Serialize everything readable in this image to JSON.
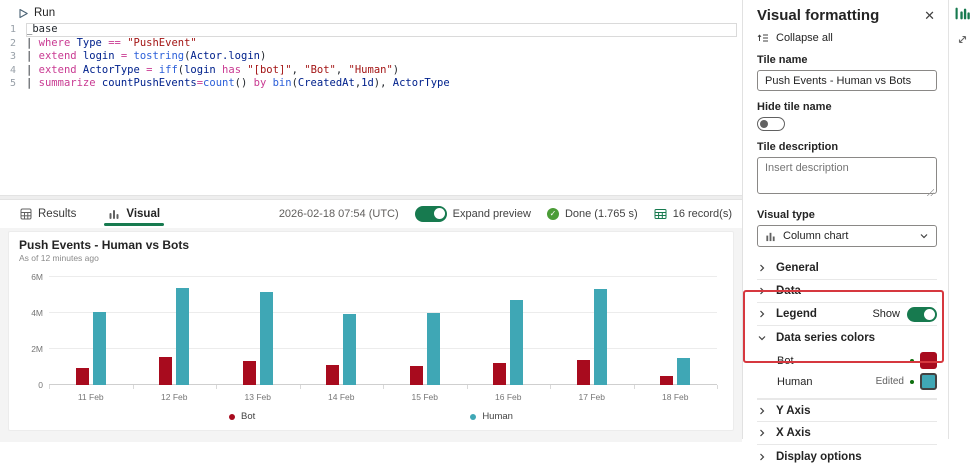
{
  "colors": {
    "accent_green": "#177a4f",
    "bot_red": "#a80b1e",
    "human_teal": "#3fa7b5",
    "annotation_red": "#d6383f",
    "done_green": "#4b9c37"
  },
  "icons": {
    "run": "play-outline-icon",
    "results_tab": "table-grid-icon",
    "visual_tab": "column-chart-icon",
    "records": "table-grid-icon",
    "done": "check-circle-icon",
    "close": "close-icon",
    "collapse_all": "collapse-all-icon",
    "dropdown_visual_type": "column-chart-icon",
    "chevron_right": "chevron-right-icon",
    "chevron_down": "chevron-down-icon",
    "rail_chart": "column-chart-icon",
    "rail_expand": "diagonal-resize-icon"
  },
  "editor": {
    "run_label": "Run",
    "lines": [
      {
        "num": "1",
        "current": true,
        "tokens": [
          [
            "p",
            "_base"
          ]
        ]
      },
      {
        "num": "2",
        "current": false,
        "tokens": [
          [
            "p",
            "| "
          ],
          [
            "k",
            "where"
          ],
          [
            "p",
            " "
          ],
          [
            "c",
            "Type"
          ],
          [
            "p",
            " "
          ],
          [
            "k",
            "=="
          ],
          [
            "p",
            " "
          ],
          [
            "s",
            "\"PushEvent\""
          ]
        ]
      },
      {
        "num": "3",
        "current": false,
        "tokens": [
          [
            "p",
            "| "
          ],
          [
            "k",
            "extend"
          ],
          [
            "p",
            " "
          ],
          [
            "c",
            "login"
          ],
          [
            "p",
            " "
          ],
          [
            "k",
            "="
          ],
          [
            "p",
            " "
          ],
          [
            "f",
            "tostring"
          ],
          [
            "p",
            "("
          ],
          [
            "c",
            "Actor.login"
          ],
          [
            "p",
            ")"
          ]
        ]
      },
      {
        "num": "4",
        "current": false,
        "tokens": [
          [
            "p",
            "| "
          ],
          [
            "k",
            "extend"
          ],
          [
            "p",
            " "
          ],
          [
            "c",
            "ActorType"
          ],
          [
            "p",
            " "
          ],
          [
            "k",
            "="
          ],
          [
            "p",
            " "
          ],
          [
            "f",
            "iff"
          ],
          [
            "p",
            "("
          ],
          [
            "c",
            "login"
          ],
          [
            "p",
            " "
          ],
          [
            "k",
            "has"
          ],
          [
            "p",
            " "
          ],
          [
            "s",
            "\"[bot]\""
          ],
          [
            "p",
            ", "
          ],
          [
            "s",
            "\"Bot\""
          ],
          [
            "p",
            ", "
          ],
          [
            "s",
            "\"Human\""
          ],
          [
            "p",
            ")"
          ]
        ]
      },
      {
        "num": "5",
        "current": false,
        "tokens": [
          [
            "p",
            "| "
          ],
          [
            "k",
            "summarize"
          ],
          [
            "p",
            " "
          ],
          [
            "c",
            "countPushEvents"
          ],
          [
            "k",
            "="
          ],
          [
            "f",
            "count"
          ],
          [
            "p",
            "() "
          ],
          [
            "k",
            "by"
          ],
          [
            "p",
            " "
          ],
          [
            "f",
            "bin"
          ],
          [
            "p",
            "("
          ],
          [
            "c",
            "CreatedAt"
          ],
          [
            "p",
            ","
          ],
          [
            "c",
            "1d"
          ],
          [
            "p",
            "), "
          ],
          [
            "c",
            "ActorType"
          ]
        ]
      }
    ]
  },
  "tabs": {
    "results": "Results",
    "visual": "Visual"
  },
  "status": {
    "timestamp": "2026-02-18 07:54 (UTC)",
    "expand_preview_label": "Expand preview",
    "done_label": "Done (1.765 s)",
    "records_label": "16 record(s)"
  },
  "chart": {
    "title": "Push Events - Human vs Bots",
    "subtitle": "As of 12 minutes ago"
  },
  "chart_data": {
    "type": "bar",
    "title": "Push Events - Human vs Bots",
    "categories": [
      "11 Feb",
      "12 Feb",
      "13 Feb",
      "14 Feb",
      "15 Feb",
      "16 Feb",
      "17 Feb",
      "18 Feb"
    ],
    "series": [
      {
        "name": "Bot",
        "color": "#a80b1e",
        "values": [
          950000,
          1550000,
          1350000,
          1100000,
          1050000,
          1250000,
          1400000,
          500000
        ]
      },
      {
        "name": "Human",
        "color": "#3fa7b5",
        "values": [
          4050000,
          5400000,
          5150000,
          3950000,
          4000000,
          4750000,
          5350000,
          1500000
        ]
      }
    ],
    "ylim": [
      0,
      6000000
    ],
    "yticks": [
      {
        "value": 0,
        "label": "0"
      },
      {
        "value": 2000000,
        "label": "2M"
      },
      {
        "value": 4000000,
        "label": "4M"
      },
      {
        "value": 6000000,
        "label": "6M"
      }
    ],
    "grid": true,
    "legend_position": "bottom"
  },
  "panel": {
    "title": "Visual formatting",
    "collapse_all": "Collapse all",
    "tile_name_label": "Tile name",
    "tile_name_value": "Push Events - Human vs Bots",
    "hide_tile_name_label": "Hide tile name",
    "tile_description_label": "Tile description",
    "tile_description_placeholder": "Insert description",
    "visual_type_label": "Visual type",
    "visual_type_value": "Column chart",
    "legend_show_label": "Show",
    "sections": [
      {
        "label": "General"
      },
      {
        "label": "Data"
      },
      {
        "label": "Legend"
      },
      {
        "label": "Data series colors"
      },
      {
        "label": "Y Axis"
      },
      {
        "label": "X Axis"
      },
      {
        "label": "Display options"
      }
    ],
    "series_colors": [
      {
        "name": "Bot",
        "color": "#a80b1e",
        "edited": false,
        "edited_label": ""
      },
      {
        "name": "Human",
        "color": "#3fa7b5",
        "edited": true,
        "edited_label": "Edited"
      }
    ]
  }
}
